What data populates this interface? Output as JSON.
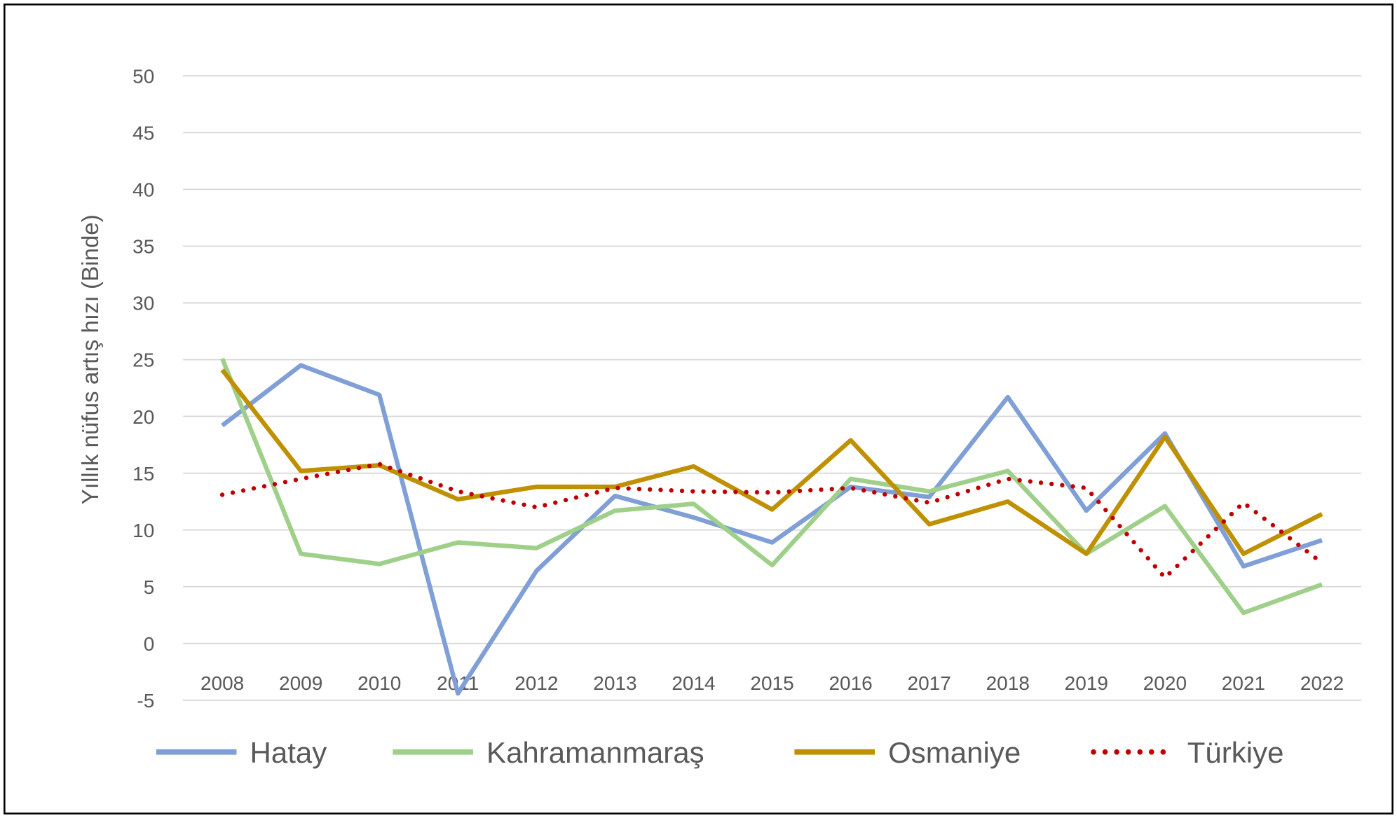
{
  "chart_data": {
    "type": "line",
    "title": "",
    "xlabel": "",
    "ylabel": "Yıllık nüfus artış hızı (Binde)",
    "ylim": [
      -5,
      50
    ],
    "yticks": [
      -5,
      0,
      5,
      10,
      15,
      20,
      25,
      30,
      35,
      40,
      45,
      50
    ],
    "grid": true,
    "legend_position": "bottom",
    "categories": [
      "2008",
      "2009",
      "2010",
      "2011",
      "2012",
      "2013",
      "2014",
      "2015",
      "2016",
      "2017",
      "2018",
      "2019",
      "2020",
      "2021",
      "2022"
    ],
    "series": [
      {
        "name": "Hatay",
        "color": "#7f9fd6",
        "style": "solid",
        "values": [
          19.2,
          24.5,
          21.9,
          -4.4,
          6.4,
          13.0,
          11.1,
          8.9,
          13.8,
          12.9,
          21.7,
          11.7,
          18.5,
          6.8,
          9.1
        ]
      },
      {
        "name": "Kahramanmaraş",
        "color": "#9fd08a",
        "style": "solid",
        "values": [
          25.1,
          7.9,
          7.0,
          8.9,
          8.4,
          11.7,
          12.3,
          6.9,
          14.5,
          13.4,
          15.2,
          7.9,
          12.1,
          2.7,
          5.2
        ]
      },
      {
        "name": "Osmaniye",
        "color": "#bf9000",
        "style": "solid",
        "values": [
          24.1,
          15.2,
          15.7,
          12.7,
          13.8,
          13.8,
          15.6,
          11.8,
          17.9,
          10.5,
          12.5,
          7.9,
          18.2,
          7.9,
          11.4
        ]
      },
      {
        "name": "Türkiye",
        "color": "#c00000",
        "style": "dotted",
        "values": [
          13.1,
          14.5,
          15.8,
          13.4,
          12.0,
          13.7,
          13.4,
          13.3,
          13.7,
          12.4,
          14.5,
          13.7,
          5.8,
          12.4,
          7.1
        ]
      }
    ]
  }
}
